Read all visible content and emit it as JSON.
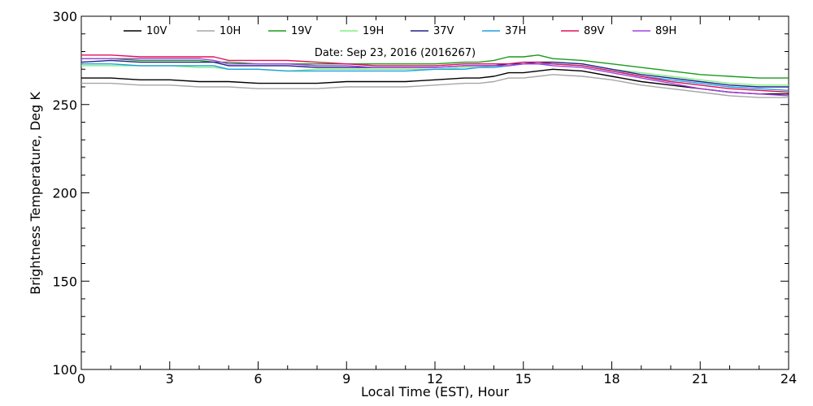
{
  "chart_data": {
    "type": "line",
    "title": "",
    "annotation": "Date: Sep 23, 2016 (2016267)",
    "xlabel": "Local Time (EST), Hour",
    "ylabel": "Brightness Temperature, Deg K",
    "xlim": [
      0,
      24
    ],
    "ylim": [
      100,
      300
    ],
    "xticks": [
      0,
      3,
      6,
      9,
      12,
      15,
      18,
      21,
      24
    ],
    "yticks": [
      100,
      150,
      200,
      250,
      300
    ],
    "grid": false,
    "legend_placement": "top",
    "x": [
      0,
      1,
      2,
      3,
      4,
      4.5,
      5,
      6,
      7,
      8,
      9,
      10,
      11,
      12,
      13,
      13.5,
      14,
      14.5,
      15,
      15.5,
      16,
      17,
      18,
      19,
      20,
      21,
      22,
      23,
      24
    ],
    "series": [
      {
        "name": "10V",
        "color": "#000000",
        "values": [
          265,
          265,
          264,
          264,
          263,
          263,
          263,
          262,
          262,
          262,
          263,
          263,
          263,
          264,
          265,
          265,
          266,
          268,
          268,
          269,
          270,
          269,
          266,
          263,
          261,
          259,
          257,
          256,
          256
        ]
      },
      {
        "name": "10H",
        "color": "#a6a6a6",
        "values": [
          262,
          262,
          261,
          261,
          260,
          260,
          260,
          259,
          259,
          259,
          260,
          260,
          260,
          261,
          262,
          262,
          263,
          265,
          265,
          266,
          267,
          266,
          264,
          261,
          259,
          257,
          255,
          254,
          254
        ]
      },
      {
        "name": "19V",
        "color": "#1a9a1a",
        "values": [
          276,
          276,
          275,
          275,
          275,
          274,
          274,
          273,
          273,
          273,
          273,
          273,
          273,
          273,
          274,
          274,
          275,
          277,
          277,
          278,
          276,
          275,
          273,
          271,
          269,
          267,
          266,
          265,
          265
        ]
      },
      {
        "name": "19H",
        "color": "#80f080",
        "values": [
          272,
          272,
          272,
          272,
          271,
          271,
          270,
          270,
          269,
          270,
          270,
          270,
          270,
          270,
          271,
          271,
          272,
          273,
          274,
          274,
          274,
          273,
          270,
          268,
          266,
          264,
          262,
          261,
          261
        ]
      },
      {
        "name": "37V",
        "color": "#20208c",
        "values": [
          274,
          275,
          274,
          274,
          274,
          274,
          272,
          272,
          272,
          271,
          271,
          271,
          271,
          271,
          272,
          272,
          272,
          273,
          273,
          274,
          274,
          273,
          270,
          267,
          265,
          263,
          261,
          260,
          260
        ]
      },
      {
        "name": "37H",
        "color": "#1ca0e0",
        "values": [
          273,
          273,
          272,
          272,
          272,
          272,
          270,
          270,
          269,
          269,
          269,
          269,
          269,
          270,
          270,
          271,
          271,
          272,
          273,
          273,
          273,
          272,
          269,
          266,
          264,
          262,
          260,
          259,
          258
        ]
      },
      {
        "name": "89V",
        "color": "#e0105a",
        "values": [
          278,
          278,
          277,
          277,
          277,
          277,
          275,
          275,
          275,
          274,
          273,
          272,
          272,
          272,
          273,
          273,
          273,
          273,
          274,
          274,
          273,
          272,
          269,
          266,
          263,
          261,
          259,
          258,
          257
        ]
      },
      {
        "name": "89H",
        "color": "#a040e0",
        "values": [
          276,
          276,
          276,
          276,
          276,
          275,
          273,
          273,
          273,
          272,
          272,
          271,
          271,
          271,
          272,
          272,
          272,
          272,
          273,
          273,
          272,
          271,
          268,
          265,
          262,
          259,
          257,
          256,
          255
        ]
      }
    ]
  }
}
